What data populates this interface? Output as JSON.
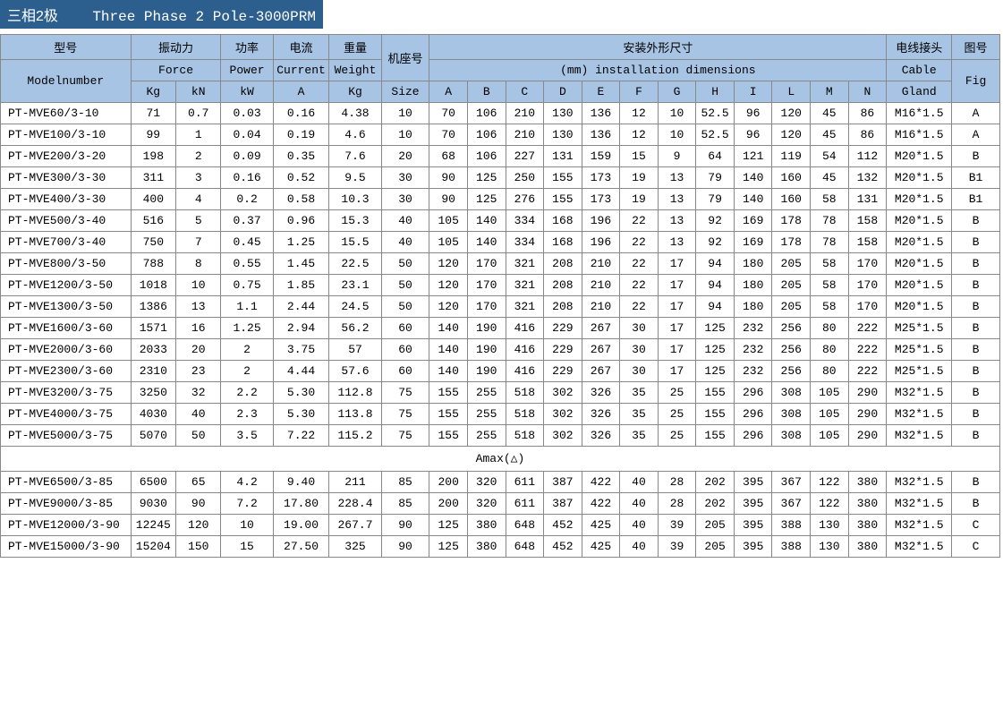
{
  "title": {
    "cn": "三相2极",
    "en": "Three Phase 2 Pole-3000PRM"
  },
  "headers": {
    "model_cn": "型号",
    "model_en": "Modelnumber",
    "force_cn": "振动力",
    "force_en": "Force",
    "force_kg": "Kg",
    "force_kn": "kN",
    "power_cn": "功率",
    "power_en": "Power",
    "power_unit": "kW",
    "current_cn": "电流",
    "current_en": "Current",
    "current_unit": "A",
    "weight_cn": "重量",
    "weight_en": "Weight",
    "weight_unit": "Kg",
    "size_cn": "机座号",
    "size_en": "Size",
    "install_cn": "安装外形尺寸",
    "install_en": "(mm) installation dimensions",
    "cable_cn": "电线接头",
    "cable_en": "Cable",
    "cable_sub": "Gland",
    "fig_cn": "图号",
    "fig_en": "Fig",
    "dims": [
      "A",
      "B",
      "C",
      "D",
      "E",
      "F",
      "G",
      "H",
      "I",
      "L",
      "M",
      "N"
    ]
  },
  "separator": "Amax(△)",
  "rows1": [
    {
      "model": "PT-MVE60/3-10",
      "kg": "71",
      "kn": "0.7",
      "kw": "0.03",
      "a": "0.16",
      "wt": "4.38",
      "size": "10",
      "A": "70",
      "B": "106",
      "C": "210",
      "D": "130",
      "E": "136",
      "F": "12",
      "G": "10",
      "H": "52.5",
      "I": "96",
      "L": "120",
      "M": "45",
      "N": "86",
      "cable": "M16*1.5",
      "fig": "A"
    },
    {
      "model": "PT-MVE100/3-10",
      "kg": "99",
      "kn": "1",
      "kw": "0.04",
      "a": "0.19",
      "wt": "4.6",
      "size": "10",
      "A": "70",
      "B": "106",
      "C": "210",
      "D": "130",
      "E": "136",
      "F": "12",
      "G": "10",
      "H": "52.5",
      "I": "96",
      "L": "120",
      "M": "45",
      "N": "86",
      "cable": "M16*1.5",
      "fig": "A"
    },
    {
      "model": "PT-MVE200/3-20",
      "kg": "198",
      "kn": "2",
      "kw": "0.09",
      "a": "0.35",
      "wt": "7.6",
      "size": "20",
      "A": "68",
      "B": "106",
      "C": "227",
      "D": "131",
      "E": "159",
      "F": "15",
      "G": "9",
      "H": "64",
      "I": "121",
      "L": "119",
      "M": "54",
      "N": "112",
      "cable": "M20*1.5",
      "fig": "B"
    },
    {
      "model": "PT-MVE300/3-30",
      "kg": "311",
      "kn": "3",
      "kw": "0.16",
      "a": "0.52",
      "wt": "9.5",
      "size": "30",
      "A": "90",
      "B": "125",
      "C": "250",
      "D": "155",
      "E": "173",
      "F": "19",
      "G": "13",
      "H": "79",
      "I": "140",
      "L": "160",
      "M": "45",
      "N": "132",
      "cable": "M20*1.5",
      "fig": "B1"
    },
    {
      "model": "PT-MVE400/3-30",
      "kg": "400",
      "kn": "4",
      "kw": "0.2",
      "a": "0.58",
      "wt": "10.3",
      "size": "30",
      "A": "90",
      "B": "125",
      "C": "276",
      "D": "155",
      "E": "173",
      "F": "19",
      "G": "13",
      "H": "79",
      "I": "140",
      "L": "160",
      "M": "58",
      "N": "131",
      "cable": "M20*1.5",
      "fig": "B1"
    },
    {
      "model": "PT-MVE500/3-40",
      "kg": "516",
      "kn": "5",
      "kw": "0.37",
      "a": "0.96",
      "wt": "15.3",
      "size": "40",
      "A": "105",
      "B": "140",
      "C": "334",
      "D": "168",
      "E": "196",
      "F": "22",
      "G": "13",
      "H": "92",
      "I": "169",
      "L": "178",
      "M": "78",
      "N": "158",
      "cable": "M20*1.5",
      "fig": "B"
    },
    {
      "model": "PT-MVE700/3-40",
      "kg": "750",
      "kn": "7",
      "kw": "0.45",
      "a": "1.25",
      "wt": "15.5",
      "size": "40",
      "A": "105",
      "B": "140",
      "C": "334",
      "D": "168",
      "E": "196",
      "F": "22",
      "G": "13",
      "H": "92",
      "I": "169",
      "L": "178",
      "M": "78",
      "N": "158",
      "cable": "M20*1.5",
      "fig": "B"
    },
    {
      "model": "PT-MVE800/3-50",
      "kg": "788",
      "kn": "8",
      "kw": "0.55",
      "a": "1.45",
      "wt": "22.5",
      "size": "50",
      "A": "120",
      "B": "170",
      "C": "321",
      "D": "208",
      "E": "210",
      "F": "22",
      "G": "17",
      "H": "94",
      "I": "180",
      "L": "205",
      "M": "58",
      "N": "170",
      "cable": "M20*1.5",
      "fig": "B"
    },
    {
      "model": "PT-MVE1200/3-50",
      "kg": "1018",
      "kn": "10",
      "kw": "0.75",
      "a": "1.85",
      "wt": "23.1",
      "size": "50",
      "A": "120",
      "B": "170",
      "C": "321",
      "D": "208",
      "E": "210",
      "F": "22",
      "G": "17",
      "H": "94",
      "I": "180",
      "L": "205",
      "M": "58",
      "N": "170",
      "cable": "M20*1.5",
      "fig": "B"
    },
    {
      "model": "PT-MVE1300/3-50",
      "kg": "1386",
      "kn": "13",
      "kw": "1.1",
      "a": "2.44",
      "wt": "24.5",
      "size": "50",
      "A": "120",
      "B": "170",
      "C": "321",
      "D": "208",
      "E": "210",
      "F": "22",
      "G": "17",
      "H": "94",
      "I": "180",
      "L": "205",
      "M": "58",
      "N": "170",
      "cable": "M20*1.5",
      "fig": "B"
    },
    {
      "model": "PT-MVE1600/3-60",
      "kg": "1571",
      "kn": "16",
      "kw": "1.25",
      "a": "2.94",
      "wt": "56.2",
      "size": "60",
      "A": "140",
      "B": "190",
      "C": "416",
      "D": "229",
      "E": "267",
      "F": "30",
      "G": "17",
      "H": "125",
      "I": "232",
      "L": "256",
      "M": "80",
      "N": "222",
      "cable": "M25*1.5",
      "fig": "B"
    },
    {
      "model": "PT-MVE2000/3-60",
      "kg": "2033",
      "kn": "20",
      "kw": "2",
      "a": "3.75",
      "wt": "57",
      "size": "60",
      "A": "140",
      "B": "190",
      "C": "416",
      "D": "229",
      "E": "267",
      "F": "30",
      "G": "17",
      "H": "125",
      "I": "232",
      "L": "256",
      "M": "80",
      "N": "222",
      "cable": "M25*1.5",
      "fig": "B"
    },
    {
      "model": "PT-MVE2300/3-60",
      "kg": "2310",
      "kn": "23",
      "kw": "2",
      "a": "4.44",
      "wt": "57.6",
      "size": "60",
      "A": "140",
      "B": "190",
      "C": "416",
      "D": "229",
      "E": "267",
      "F": "30",
      "G": "17",
      "H": "125",
      "I": "232",
      "L": "256",
      "M": "80",
      "N": "222",
      "cable": "M25*1.5",
      "fig": "B"
    },
    {
      "model": "PT-MVE3200/3-75",
      "kg": "3250",
      "kn": "32",
      "kw": "2.2",
      "a": "5.30",
      "wt": "112.8",
      "size": "75",
      "A": "155",
      "B": "255",
      "C": "518",
      "D": "302",
      "E": "326",
      "F": "35",
      "G": "25",
      "H": "155",
      "I": "296",
      "L": "308",
      "M": "105",
      "N": "290",
      "cable": "M32*1.5",
      "fig": "B"
    },
    {
      "model": "PT-MVE4000/3-75",
      "kg": "4030",
      "kn": "40",
      "kw": "2.3",
      "a": "5.30",
      "wt": "113.8",
      "size": "75",
      "A": "155",
      "B": "255",
      "C": "518",
      "D": "302",
      "E": "326",
      "F": "35",
      "G": "25",
      "H": "155",
      "I": "296",
      "L": "308",
      "M": "105",
      "N": "290",
      "cable": "M32*1.5",
      "fig": "B"
    },
    {
      "model": "PT-MVE5000/3-75",
      "kg": "5070",
      "kn": "50",
      "kw": "3.5",
      "a": "7.22",
      "wt": "115.2",
      "size": "75",
      "A": "155",
      "B": "255",
      "C": "518",
      "D": "302",
      "E": "326",
      "F": "35",
      "G": "25",
      "H": "155",
      "I": "296",
      "L": "308",
      "M": "105",
      "N": "290",
      "cable": "M32*1.5",
      "fig": "B"
    }
  ],
  "rows2": [
    {
      "model": "PT-MVE6500/3-85",
      "kg": "6500",
      "kn": "65",
      "kw": "4.2",
      "a": "9.40",
      "wt": "211",
      "size": "85",
      "A": "200",
      "B": "320",
      "C": "611",
      "D": "387",
      "E": "422",
      "F": "40",
      "G": "28",
      "H": "202",
      "I": "395",
      "L": "367",
      "M": "122",
      "N": "380",
      "cable": "M32*1.5",
      "fig": "B"
    },
    {
      "model": "PT-MVE9000/3-85",
      "kg": "9030",
      "kn": "90",
      "kw": "7.2",
      "a": "17.80",
      "wt": "228.4",
      "size": "85",
      "A": "200",
      "B": "320",
      "C": "611",
      "D": "387",
      "E": "422",
      "F": "40",
      "G": "28",
      "H": "202",
      "I": "395",
      "L": "367",
      "M": "122",
      "N": "380",
      "cable": "M32*1.5",
      "fig": "B"
    },
    {
      "model": "PT-MVE12000/3-90",
      "kg": "12245",
      "kn": "120",
      "kw": "10",
      "a": "19.00",
      "wt": "267.7",
      "size": "90",
      "A": "125",
      "B": "380",
      "C": "648",
      "D": "452",
      "E": "425",
      "F": "40",
      "G": "39",
      "H": "205",
      "I": "395",
      "L": "388",
      "M": "130",
      "N": "380",
      "cable": "M32*1.5",
      "fig": "C"
    },
    {
      "model": "PT-MVE15000/3-90",
      "kg": "15204",
      "kn": "150",
      "kw": "15",
      "a": "27.50",
      "wt": "325",
      "size": "90",
      "A": "125",
      "B": "380",
      "C": "648",
      "D": "452",
      "E": "425",
      "F": "40",
      "G": "39",
      "H": "205",
      "I": "395",
      "L": "388",
      "M": "130",
      "N": "380",
      "cable": "M32*1.5",
      "fig": "C"
    }
  ]
}
